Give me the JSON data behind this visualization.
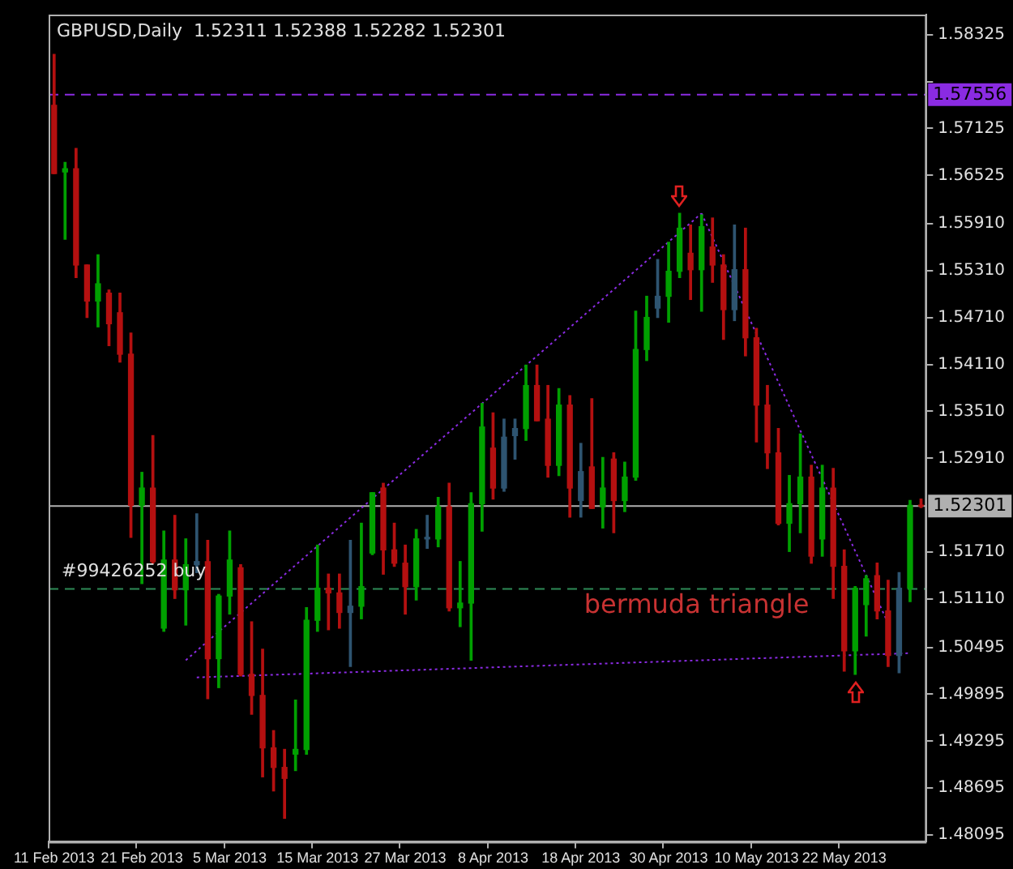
{
  "chart_data": {
    "type": "candlestick",
    "title": "GBPUSD,Daily  1.52311 1.52388 1.52282 1.52301",
    "categories": [
      "11 Feb 2013",
      null,
      null,
      null,
      null,
      null,
      null,
      null,
      "21 Feb 2013",
      null,
      null,
      null,
      null,
      null,
      null,
      null,
      "5 Mar 2013",
      null,
      null,
      null,
      null,
      null,
      null,
      null,
      "15 Mar 2013",
      null,
      null,
      null,
      null,
      null,
      null,
      null,
      "27 Mar 2013",
      null,
      null,
      null,
      null,
      null,
      null,
      null,
      "8 Apr 2013",
      null,
      null,
      null,
      null,
      null,
      null,
      null,
      "18 Apr 2013",
      null,
      null,
      null,
      null,
      null,
      null,
      null,
      "30 Apr 2013",
      null,
      null,
      null,
      null,
      null,
      null,
      null,
      "10 May 2013",
      null,
      null,
      null,
      null,
      null,
      null,
      null,
      "22 May 2013",
      null,
      null,
      null,
      null,
      null,
      null,
      null
    ],
    "ohlc": [
      [
        1.5742,
        1.5807,
        1.5655,
        1.5655
      ],
      [
        1.5657,
        1.5669,
        1.5571,
        1.5661
      ],
      [
        1.5661,
        1.5687,
        1.5522,
        1.5538
      ],
      [
        1.5538,
        1.5538,
        1.5471,
        1.5492
      ],
      [
        1.5492,
        1.5551,
        1.5459,
        1.5514
      ],
      [
        1.5502,
        1.5506,
        1.5435,
        1.5463
      ],
      [
        1.5477,
        1.5502,
        1.5414,
        1.5424
      ],
      [
        1.5424,
        1.5451,
        1.519,
        1.5231
      ],
      [
        1.5231,
        1.5273,
        1.5131,
        1.5253
      ],
      [
        1.5253,
        1.532,
        1.5157,
        1.5159
      ],
      [
        1.5074,
        1.5198,
        1.507,
        1.5161
      ],
      [
        1.5161,
        1.5218,
        1.5112,
        1.5123
      ],
      [
        1.5123,
        1.5188,
        1.5078,
        1.5155
      ],
      [
        1.5155,
        1.522,
        1.5145,
        1.5159
      ],
      [
        1.5159,
        1.5186,
        1.4984,
        1.5035
      ],
      [
        1.5035,
        1.5117,
        1.4998,
        1.5115
      ],
      [
        1.5115,
        1.5198,
        1.5092,
        1.5161
      ],
      [
        1.5151,
        1.5155,
        1.5013,
        1.5015
      ],
      [
        1.5015,
        1.5082,
        1.4964,
        1.4988
      ],
      [
        1.4988,
        1.5047,
        1.4884,
        1.4921
      ],
      [
        1.4921,
        1.4943,
        1.4866,
        1.4896
      ],
      [
        1.4896,
        1.4919,
        1.4831,
        1.4882
      ],
      [
        1.4913,
        1.4982,
        1.4892,
        1.4919
      ],
      [
        1.4919,
        1.51,
        1.4913,
        1.5084
      ],
      [
        1.5084,
        1.518,
        1.507,
        1.5125
      ],
      [
        1.5125,
        1.5143,
        1.5072,
        1.5119
      ],
      [
        1.5119,
        1.5143,
        1.5074,
        1.5094
      ],
      [
        1.5094,
        1.5186,
        1.5025,
        1.5102
      ],
      [
        1.5102,
        1.5208,
        1.5086,
        1.5127
      ],
      [
        1.517,
        1.5247,
        1.5168,
        1.5247
      ],
      [
        1.5253,
        1.5259,
        1.5143,
        1.5174
      ],
      [
        1.5174,
        1.5208,
        1.5153,
        1.5157
      ],
      [
        1.5157,
        1.518,
        1.5092,
        1.5127
      ],
      [
        1.5127,
        1.52,
        1.511,
        1.5188
      ],
      [
        1.5188,
        1.5218,
        1.5176,
        1.519
      ],
      [
        1.5188,
        1.5241,
        1.5178,
        1.5229
      ],
      [
        1.5229,
        1.5259,
        1.5096,
        1.51
      ],
      [
        1.51,
        1.5159,
        1.5076,
        1.5106
      ],
      [
        1.5106,
        1.5247,
        1.5033,
        1.5233
      ],
      [
        1.5233,
        1.5361,
        1.5198,
        1.5331
      ],
      [
        1.5304,
        1.5349,
        1.5239,
        1.5253
      ],
      [
        1.5253,
        1.5341,
        1.5249,
        1.5318
      ],
      [
        1.532,
        1.5341,
        1.529,
        1.5329
      ],
      [
        1.5329,
        1.541,
        1.5314,
        1.5384
      ],
      [
        1.5384,
        1.541,
        1.5339,
        1.5339
      ],
      [
        1.5341,
        1.5384,
        1.5267,
        1.5282
      ],
      [
        1.5282,
        1.538,
        1.5269,
        1.5359
      ],
      [
        1.5359,
        1.5371,
        1.5216,
        1.5253
      ],
      [
        1.5274,
        1.531,
        1.5216,
        1.5237
      ],
      [
        1.528,
        1.5367,
        1.5227,
        1.5227
      ],
      [
        1.5229,
        1.5292,
        1.5202,
        1.5253
      ],
      [
        1.529,
        1.5298,
        1.5196,
        1.5237
      ],
      [
        1.5237,
        1.5286,
        1.5223,
        1.5267
      ],
      [
        1.5267,
        1.5479,
        1.5263,
        1.543
      ],
      [
        1.543,
        1.5498,
        1.5416,
        1.5471
      ],
      [
        1.5483,
        1.5545,
        1.5471,
        1.5498
      ],
      [
        1.5498,
        1.5567,
        1.5465,
        1.553
      ],
      [
        1.553,
        1.5604,
        1.5522,
        1.5585
      ],
      [
        1.5553,
        1.5589,
        1.5494,
        1.5532
      ],
      [
        1.5532,
        1.5602,
        1.5479,
        1.5587
      ],
      [
        1.5561,
        1.5598,
        1.5516,
        1.5538
      ],
      [
        1.5538,
        1.5551,
        1.5443,
        1.5481
      ],
      [
        1.5481,
        1.5589,
        1.5467,
        1.5532
      ],
      [
        1.5532,
        1.5585,
        1.5422,
        1.5445
      ],
      [
        1.5445,
        1.5457,
        1.5312,
        1.5359
      ],
      [
        1.5359,
        1.5384,
        1.5278,
        1.5298
      ],
      [
        1.5298,
        1.5329,
        1.5206,
        1.5208
      ],
      [
        1.5208,
        1.5269,
        1.5172,
        1.5233
      ],
      [
        1.5233,
        1.5322,
        1.5196,
        1.5267
      ],
      [
        1.5267,
        1.5282,
        1.5157,
        1.5166
      ],
      [
        1.5188,
        1.5282,
        1.5166,
        1.5253
      ],
      [
        1.5253,
        1.5278,
        1.5112,
        1.5153
      ],
      [
        1.5153,
        1.5174,
        1.5019,
        1.5045
      ],
      [
        1.5045,
        1.5127,
        1.5015,
        1.5125
      ],
      [
        1.5104,
        1.5141,
        1.5064,
        1.5137
      ],
      [
        1.5141,
        1.5157,
        1.5086,
        1.5096
      ],
      [
        1.5096,
        1.5135,
        1.5025,
        1.5039
      ],
      [
        1.5039,
        1.5145,
        1.5017,
        1.5125
      ],
      [
        1.5125,
        1.5237,
        1.5108,
        1.5231
      ],
      [
        1.52311,
        1.52388,
        1.52282,
        1.52301
      ]
    ],
    "colors": [
      "#b41010",
      "#00a000",
      "#b41010",
      "#b41010",
      "#00a000",
      "#b41010",
      "#b41010",
      "#b41010",
      "#00a000",
      "#b41010",
      "#00a000",
      "#b41010",
      "#00a000",
      "#2e5470",
      "#b41010",
      "#00a000",
      "#00a000",
      "#b41010",
      "#b41010",
      "#b41010",
      "#b41010",
      "#b41010",
      "#00a000",
      "#00a000",
      "#00a000",
      "#b41010",
      "#b41010",
      "#2e5470",
      "#00a000",
      "#00a000",
      "#b41010",
      "#b41010",
      "#b41010",
      "#00a000",
      "#2e5470",
      "#00a000",
      "#b41010",
      "#00a000",
      "#00a000",
      "#00a000",
      "#b41010",
      "#2e5470",
      "#2e5470",
      "#00a000",
      "#b41010",
      "#b41010",
      "#00a000",
      "#b41010",
      "#2e5470",
      "#b41010",
      "#00a000",
      "#b41010",
      "#00a000",
      "#00a000",
      "#00a000",
      "#2e5470",
      "#00a000",
      "#00a000",
      "#b41010",
      "#00a000",
      "#b41010",
      "#b41010",
      "#2e5470",
      "#b41010",
      "#b41010",
      "#b41010",
      "#b41010",
      "#00a000",
      "#00a000",
      "#b41010",
      "#00a000",
      "#b41010",
      "#b41010",
      "#00a000",
      "#00a000",
      "#b41010",
      "#b41010",
      "#2e5470",
      "#00a000",
      "#b41010"
    ],
    "series": [
      {
        "type": "line",
        "color": "#8a2be2",
        "line_style": "dotted",
        "values": [
          null,
          null,
          null,
          null,
          null,
          null,
          null,
          null,
          null,
          null,
          null,
          null,
          1.5033,
          null,
          null,
          null,
          null,
          null,
          null,
          null,
          null,
          null,
          null,
          null,
          null,
          null,
          null,
          null,
          null,
          null,
          null,
          null,
          null,
          null,
          null,
          null,
          null,
          null,
          null,
          null,
          null,
          null,
          null,
          null,
          null,
          null,
          null,
          null,
          null,
          null,
          null,
          null,
          null,
          null,
          null,
          null,
          null,
          null,
          null,
          1.5604,
          null,
          null,
          null,
          null,
          null,
          null,
          null,
          null,
          null,
          null,
          null,
          null,
          null,
          null,
          null,
          null,
          null,
          null,
          null,
          null
        ]
      },
      {
        "type": "line",
        "color": "#8a2be2",
        "line_style": "dotted",
        "values": [
          null,
          null,
          null,
          null,
          null,
          null,
          null,
          null,
          null,
          null,
          null,
          null,
          null,
          null,
          null,
          null,
          null,
          null,
          null,
          null,
          null,
          null,
          null,
          null,
          null,
          null,
          null,
          null,
          null,
          null,
          null,
          null,
          null,
          null,
          null,
          null,
          null,
          null,
          null,
          null,
          null,
          null,
          null,
          null,
          null,
          null,
          null,
          null,
          null,
          null,
          null,
          null,
          null,
          null,
          null,
          null,
          null,
          null,
          null,
          1.5604,
          null,
          null,
          null,
          null,
          null,
          null,
          null,
          null,
          null,
          null,
          null,
          null,
          null,
          null,
          null,
          null,
          1.508,
          null,
          null,
          null
        ]
      },
      {
        "type": "line",
        "color": "#8a2be2",
        "line_style": "dotted",
        "values": [
          null,
          null,
          null,
          null,
          null,
          null,
          null,
          null,
          null,
          null,
          null,
          null,
          null,
          1.5011,
          null,
          null,
          null,
          null,
          null,
          null,
          null,
          null,
          null,
          null,
          null,
          null,
          null,
          null,
          null,
          null,
          null,
          null,
          null,
          null,
          null,
          null,
          null,
          null,
          null,
          null,
          null,
          null,
          null,
          null,
          null,
          null,
          null,
          null,
          null,
          null,
          null,
          null,
          null,
          null,
          null,
          null,
          null,
          null,
          null,
          null,
          null,
          null,
          null,
          null,
          null,
          null,
          null,
          null,
          null,
          null,
          null,
          null,
          null,
          null,
          null,
          null,
          null,
          null,
          1.5042,
          null
        ]
      }
    ],
    "ylim": [
      1.4801,
      1.5858
    ],
    "yticks": [
      1.58325,
      {
        "value": 1.57725,
        "label": null
      },
      1.57125,
      1.56525,
      {
        "value": 1.5591,
        "label": "1.55910"
      },
      {
        "value": 1.5531,
        "label": "1.55310"
      },
      {
        "value": 1.5471,
        "label": "1.54710"
      },
      {
        "value": 1.5411,
        "label": "1.54110"
      },
      {
        "value": 1.5351,
        "label": "1.53510"
      },
      {
        "value": 1.5291,
        "label": "1.52910"
      },
      {
        "value": 1.5171,
        "label": "1.51710"
      },
      {
        "value": 1.5111,
        "label": "1.51110"
      },
      1.50495,
      1.49895,
      1.49295,
      1.48695,
      1.48095
    ],
    "ref_lines": [
      {
        "axis": "y",
        "value": 1.57556,
        "label": "1.57556",
        "color": "#8a2be2",
        "line_style": "dashed"
      },
      {
        "axis": "y",
        "value": 1.52301,
        "label": "1.52301",
        "color": "#b0b0b0",
        "line_style": "solid"
      },
      {
        "axis": "y",
        "value": 1.5124,
        "label": "#99426252 buy",
        "color": "#2e8b57",
        "line_style": "dashed"
      }
    ],
    "annotations": [
      "bermuda triangle"
    ]
  }
}
